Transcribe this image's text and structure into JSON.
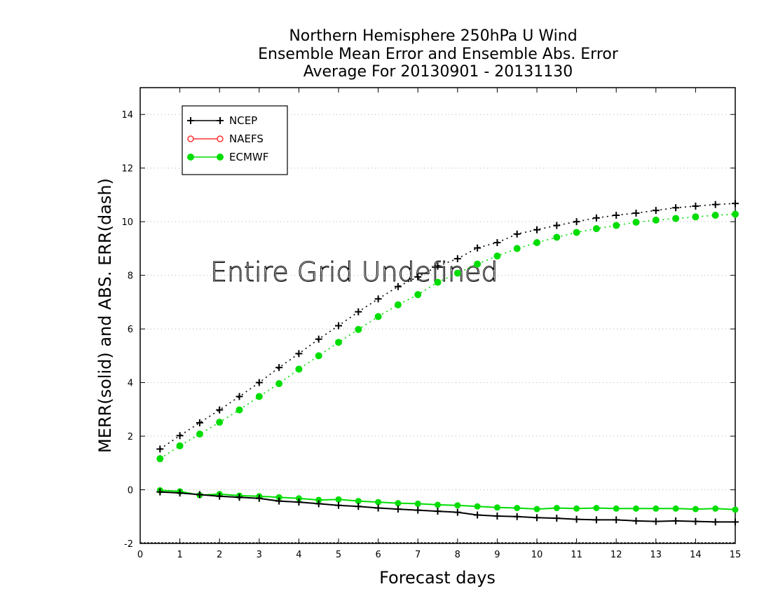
{
  "chart_data": {
    "type": "line",
    "title": [
      "Northern Hemisphere 250hPa U Wind",
      "Ensemble Mean Error and Ensemble Abs. Error",
      "Average For 20130901 - 20131130"
    ],
    "xlabel": "Forecast days",
    "ylabel": "MERR(solid) and ABS. ERR(dash)",
    "xlim": [
      0,
      15
    ],
    "ylim": [
      -2,
      15
    ],
    "xticks": [
      "0",
      "1",
      "2",
      "3",
      "4",
      "5",
      "6",
      "7",
      "8",
      "9",
      "10",
      "11",
      "12",
      "13",
      "14",
      "15"
    ],
    "yticks": [
      "-2",
      "0",
      "2",
      "4",
      "6",
      "8",
      "10",
      "12",
      "14"
    ],
    "grid": "horizontal dotted",
    "legend_position": "top-left",
    "annotation": "Entire Grid Undefined",
    "x": [
      0.5,
      1,
      1.5,
      2,
      2.5,
      3,
      3.5,
      4,
      4.5,
      5,
      5.5,
      6,
      6.5,
      7,
      7.5,
      8,
      8.5,
      9,
      9.5,
      10,
      10.5,
      11,
      11.5,
      12,
      12.5,
      13,
      13.5,
      14,
      14.5,
      15
    ],
    "series": [
      {
        "name": "NCEP",
        "color": "#000000",
        "marker": "plus",
        "merr": [
          -0.08,
          -0.12,
          -0.18,
          -0.24,
          -0.28,
          -0.32,
          -0.42,
          -0.46,
          -0.52,
          -0.58,
          -0.62,
          -0.68,
          -0.72,
          -0.76,
          -0.8,
          -0.84,
          -0.94,
          -0.98,
          -1.0,
          -1.04,
          -1.06,
          -1.1,
          -1.12,
          -1.12,
          -1.16,
          -1.18,
          -1.16,
          -1.18,
          -1.2,
          -1.2
        ],
        "abs_err": [
          1.52,
          2.02,
          2.5,
          2.98,
          3.48,
          4.0,
          4.56,
          5.08,
          5.62,
          6.12,
          6.64,
          7.12,
          7.58,
          7.94,
          8.34,
          8.62,
          9.02,
          9.22,
          9.54,
          9.7,
          9.86,
          10.0,
          10.14,
          10.24,
          10.32,
          10.42,
          10.52,
          10.58,
          10.64,
          10.68
        ]
      },
      {
        "name": "NAEFS",
        "color": "#ff3333",
        "marker": "open-circle",
        "merr": [],
        "abs_err": []
      },
      {
        "name": "ECMWF",
        "color": "#00dd00",
        "marker": "filled-circle",
        "merr": [
          -0.02,
          -0.06,
          -0.2,
          -0.16,
          -0.22,
          -0.24,
          -0.28,
          -0.32,
          -0.38,
          -0.36,
          -0.42,
          -0.46,
          -0.5,
          -0.52,
          -0.56,
          -0.58,
          -0.62,
          -0.66,
          -0.68,
          -0.72,
          -0.68,
          -0.7,
          -0.68,
          -0.7,
          -0.7,
          -0.7,
          -0.7,
          -0.72,
          -0.7,
          -0.74
        ],
        "abs_err": [
          1.16,
          1.64,
          2.08,
          2.52,
          2.98,
          3.48,
          3.96,
          4.5,
          5.0,
          5.5,
          5.98,
          6.46,
          6.9,
          7.28,
          7.74,
          8.08,
          8.42,
          8.72,
          9.0,
          9.22,
          9.42,
          9.6,
          9.74,
          9.86,
          9.98,
          10.06,
          10.12,
          10.18,
          10.24,
          10.28
        ]
      }
    ]
  }
}
